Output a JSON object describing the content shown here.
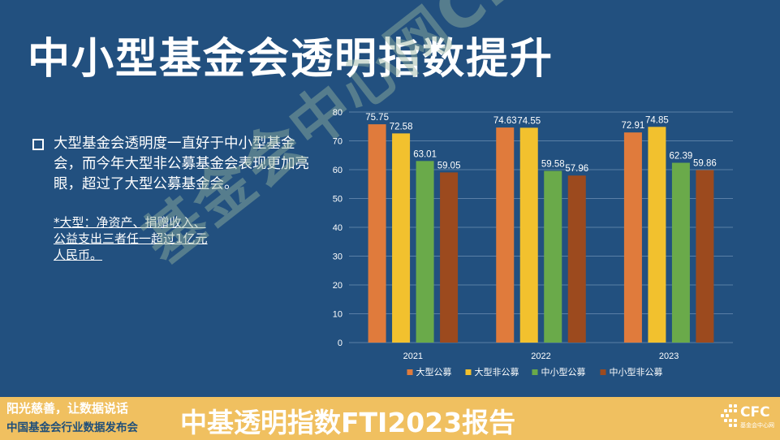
{
  "title": "中小型基金会透明指数提升",
  "bullet": "大型基金会透明度一直好于中小型基金会，而今年大型非公募基金会表现更加亮眼，超过了大型公募基金会。",
  "note": "*大型：净资产、捐赠收入、公益支出三者任一超过1亿元人民币。",
  "watermark": "基金会中心网CFC",
  "footer": {
    "slogan1": "阳光慈善，让数据说话",
    "slogan2": "中国基金会行业数据发布会",
    "report": "中基透明指数FTI2023报告",
    "logo_text": "CFC",
    "logo_sub": "基金会中心网"
  },
  "chart_data": {
    "type": "bar",
    "categories": [
      "2021",
      "2022",
      "2023"
    ],
    "series": [
      {
        "name": "大型公募",
        "values": [
          75.75,
          74.63,
          72.91
        ],
        "color": "#e07b3c"
      },
      {
        "name": "大型非公募",
        "values": [
          72.58,
          74.55,
          74.85
        ],
        "color": "#f2c12e"
      },
      {
        "name": "中小型公募",
        "values": [
          63.01,
          59.58,
          62.39
        ],
        "color": "#6aaa4a"
      },
      {
        "name": "中小型非公募",
        "values": [
          59.05,
          57.96,
          59.86
        ],
        "color": "#9c4a1e"
      }
    ],
    "ylim": [
      0,
      80
    ],
    "yticks": [
      0,
      10,
      20,
      30,
      40,
      50,
      60,
      70,
      80
    ],
    "grid": true,
    "legend": "bottom"
  }
}
